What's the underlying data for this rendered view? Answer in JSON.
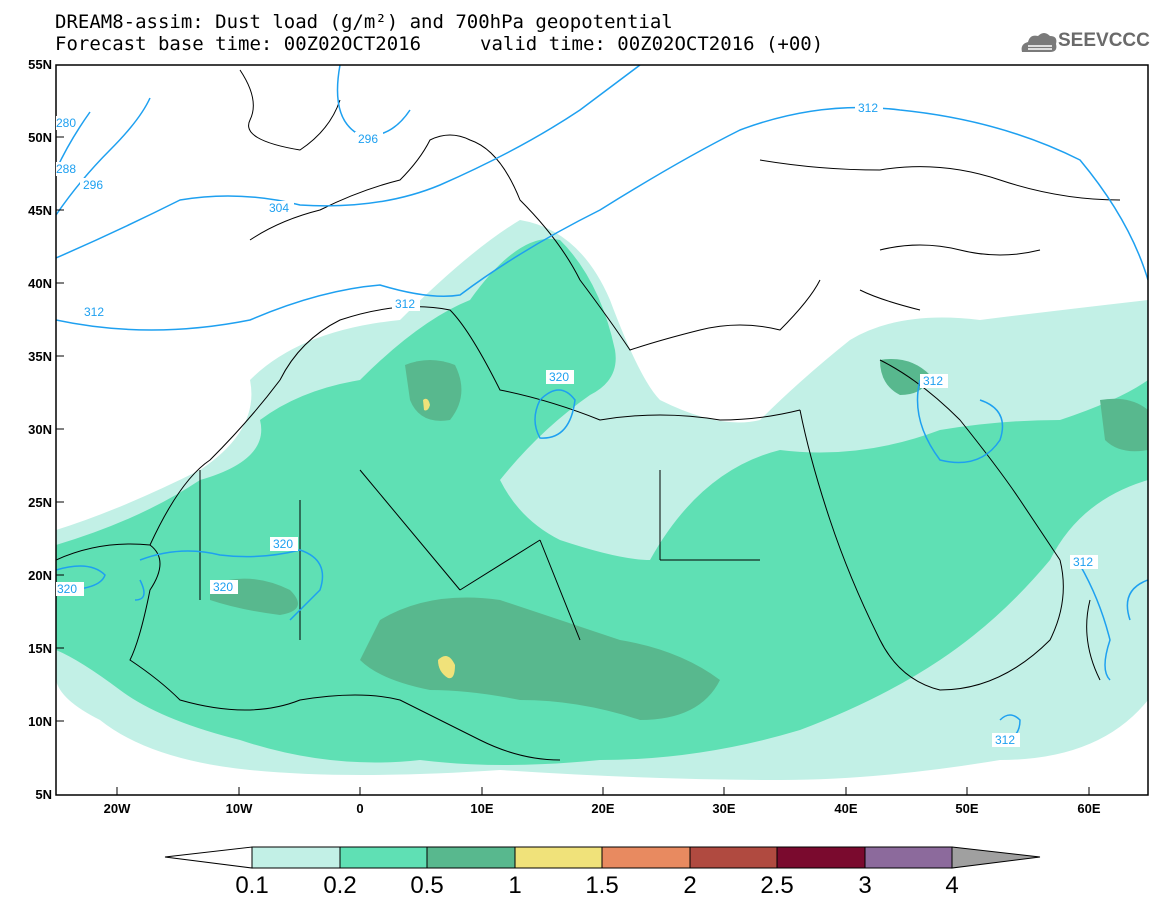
{
  "title": {
    "line1": "DREAM8-assim: Dust load (g/m²) and 700hPa geopotential",
    "line2": "Forecast base time: 00Z02OCT2016",
    "valid": "valid time: 00Z02OCT2016 (+00)"
  },
  "logo": {
    "text": "SEEVCCC",
    "icon": "cloud-logo-icon",
    "color": "#6a6a6a"
  },
  "map": {
    "lat_labels": [
      "55N",
      "50N",
      "45N",
      "40N",
      "35N",
      "30N",
      "25N",
      "20N",
      "15N",
      "10N",
      "5N"
    ],
    "lon_labels": [
      "20W",
      "10W",
      "0",
      "10E",
      "20E",
      "30E",
      "40E",
      "50E",
      "60E"
    ],
    "contour_labels": [
      "312",
      "312",
      "304",
      "296",
      "296",
      "288",
      "280",
      "312",
      "320",
      "320",
      "320",
      "320",
      "312",
      "312",
      "312"
    ],
    "contour_color": "#1ea0f0"
  },
  "colorbar": {
    "levels": [
      "0.1",
      "0.2",
      "0.5",
      "1",
      "1.5",
      "2",
      "2.5",
      "3",
      "4"
    ],
    "colors": [
      "#c2f0e6",
      "#5fe0b4",
      "#58b88e",
      "#f0e27a",
      "#e88a60",
      "#b04a40",
      "#7a0a2e",
      "#8c6a9c",
      "#a0a0a0"
    ]
  }
}
